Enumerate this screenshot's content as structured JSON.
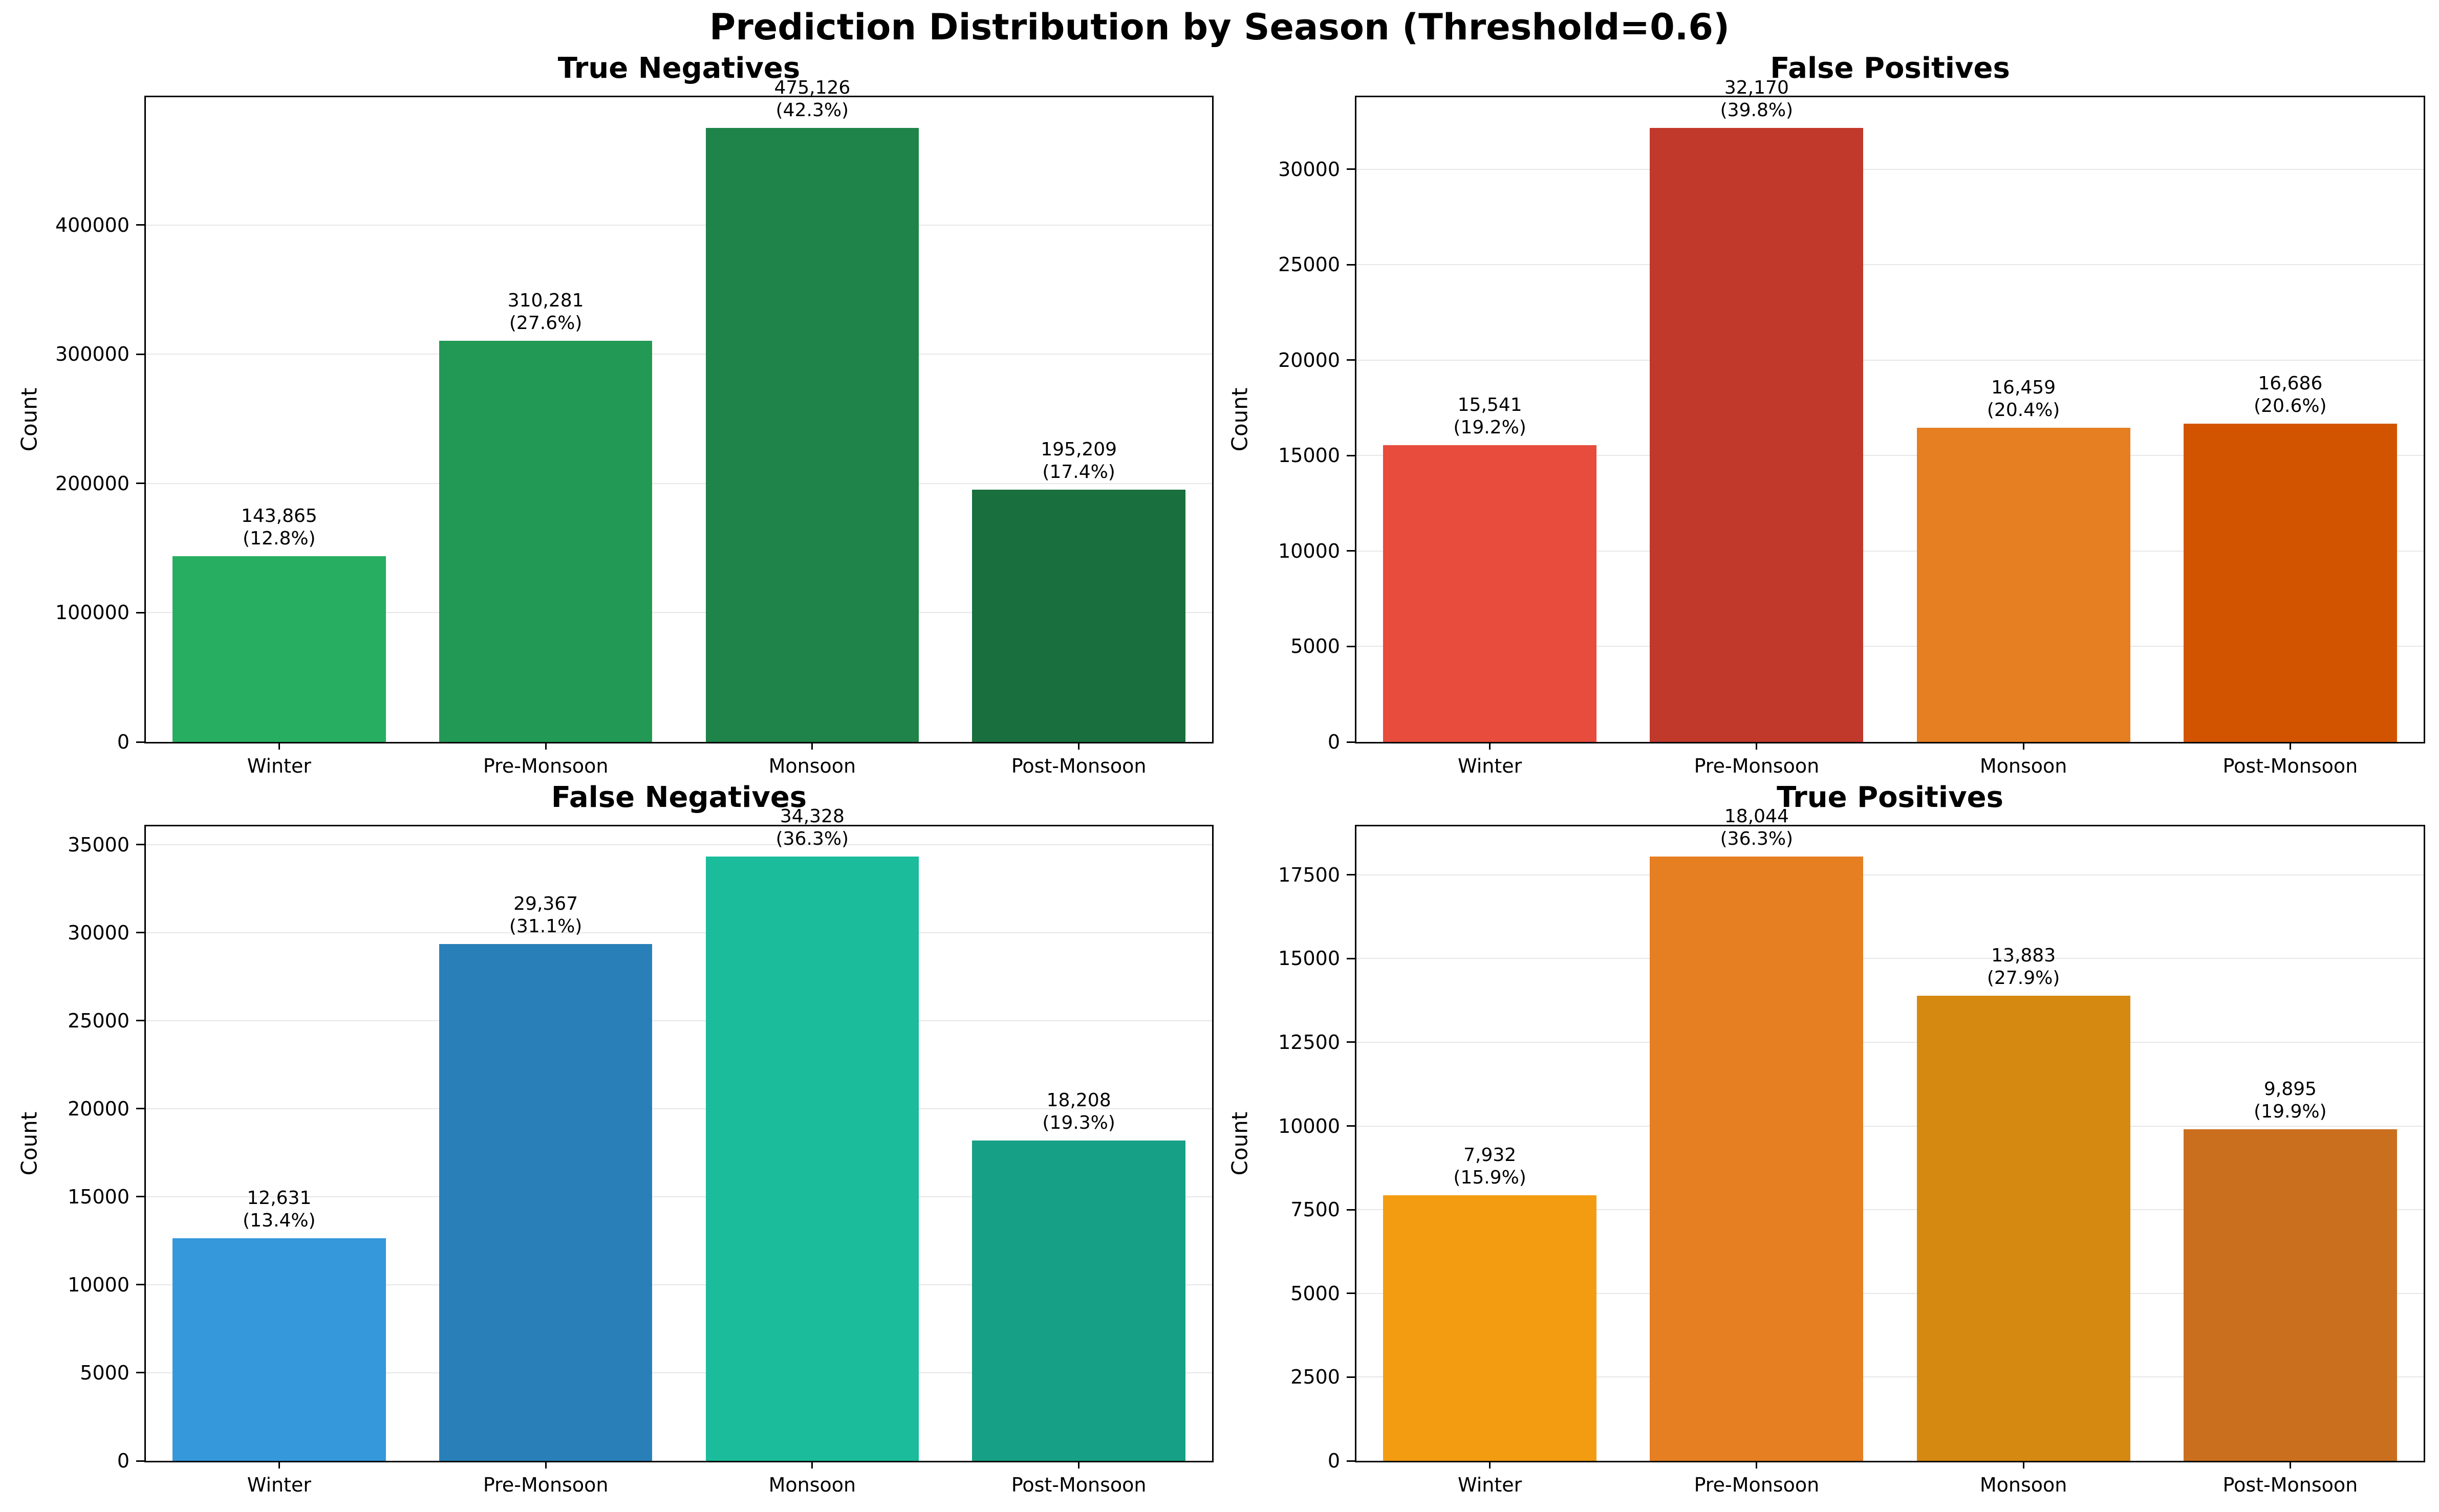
{
  "figure_title": "Prediction Distribution by Season (Threshold=0.6)",
  "chart_data": [
    {
      "type": "bar",
      "title": "True Negatives",
      "ylabel": "Count",
      "xlabel": "",
      "categories": [
        "Winter",
        "Pre-Monsoon",
        "Monsoon",
        "Post-Monsoon"
      ],
      "values": [
        143865,
        310281,
        475126,
        195209
      ],
      "value_labels": [
        "143,865",
        "310,281",
        "475,126",
        "195,209"
      ],
      "pct_labels": [
        "(12.8%)",
        "(27.6%)",
        "(42.3%)",
        "(17.4%)"
      ],
      "colors": [
        "#27ae60",
        "#229954",
        "#1e8449",
        "#196f3d"
      ],
      "yticks": [
        0,
        100000,
        200000,
        300000,
        400000
      ],
      "ytick_labels": [
        "0",
        "100000",
        "200000",
        "300000",
        "400000"
      ],
      "ylim": [
        0,
        498882
      ],
      "grid": true,
      "legend_position": "none"
    },
    {
      "type": "bar",
      "title": "False Positives",
      "ylabel": "Count",
      "xlabel": "",
      "categories": [
        "Winter",
        "Pre-Monsoon",
        "Monsoon",
        "Post-Monsoon"
      ],
      "values": [
        15541,
        32170,
        16459,
        16686
      ],
      "value_labels": [
        "15,541",
        "32,170",
        "16,459",
        "16,686"
      ],
      "pct_labels": [
        "(19.2%)",
        "(39.8%)",
        "(20.4%)",
        "(20.6%)"
      ],
      "colors": [
        "#e74c3c",
        "#c0392b",
        "#e67e22",
        "#d35400"
      ],
      "yticks": [
        0,
        5000,
        10000,
        15000,
        20000,
        25000,
        30000
      ],
      "ytick_labels": [
        "0",
        "5000",
        "10000",
        "15000",
        "20000",
        "25000",
        "30000"
      ],
      "ylim": [
        0,
        33779
      ],
      "grid": true,
      "legend_position": "none"
    },
    {
      "type": "bar",
      "title": "False Negatives",
      "ylabel": "Count",
      "xlabel": "",
      "categories": [
        "Winter",
        "Pre-Monsoon",
        "Monsoon",
        "Post-Monsoon"
      ],
      "values": [
        12631,
        29367,
        34328,
        18208
      ],
      "value_labels": [
        "12,631",
        "29,367",
        "34,328",
        "18,208"
      ],
      "pct_labels": [
        "(13.4%)",
        "(31.1%)",
        "(36.3%)",
        "(19.3%)"
      ],
      "colors": [
        "#3498db",
        "#2980b9",
        "#1abc9c",
        "#16a085"
      ],
      "yticks": [
        0,
        5000,
        10000,
        15000,
        20000,
        25000,
        30000,
        35000
      ],
      "ytick_labels": [
        "0",
        "5000",
        "10000",
        "15000",
        "20000",
        "25000",
        "30000",
        "35000"
      ],
      "ylim": [
        0,
        36044
      ],
      "grid": true,
      "legend_position": "none"
    },
    {
      "type": "bar",
      "title": "True Positives",
      "ylabel": "Count",
      "xlabel": "",
      "categories": [
        "Winter",
        "Pre-Monsoon",
        "Monsoon",
        "Post-Monsoon"
      ],
      "values": [
        7932,
        18044,
        13883,
        9895
      ],
      "value_labels": [
        "7,932",
        "18,044",
        "13,883",
        "9,895"
      ],
      "pct_labels": [
        "(15.9%)",
        "(36.3%)",
        "(27.9%)",
        "(19.9%)"
      ],
      "colors": [
        "#f39c12",
        "#e67e22",
        "#d68910",
        "#ca6f1e"
      ],
      "yticks": [
        0,
        2500,
        5000,
        7500,
        10000,
        12500,
        15000,
        17500
      ],
      "ytick_labels": [
        "0",
        "2500",
        "5000",
        "7500",
        "10000",
        "12500",
        "15000",
        "17500"
      ],
      "ylim": [
        0,
        18946
      ],
      "grid": true,
      "legend_position": "none"
    }
  ]
}
